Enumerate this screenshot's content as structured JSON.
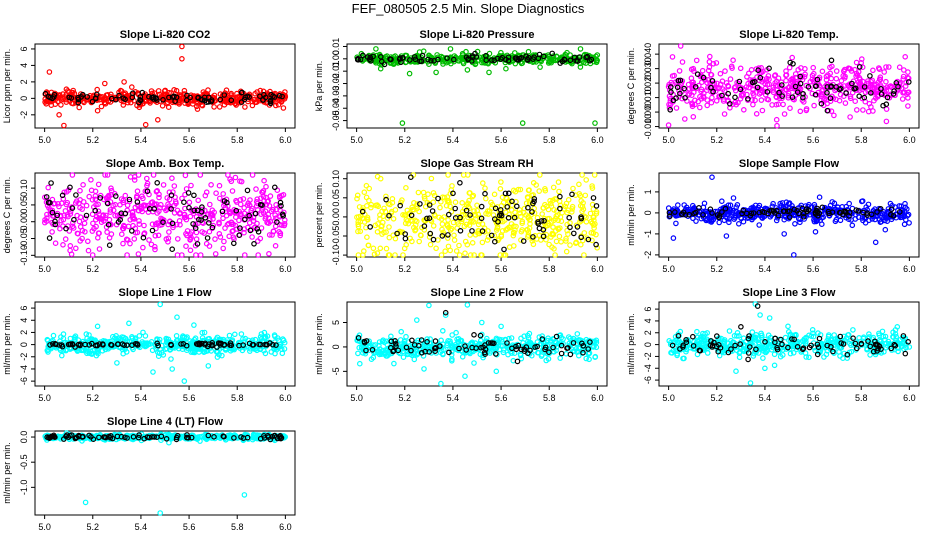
{
  "page": {
    "title": "FEF_080505  2.5 Min. Slope Diagnostics"
  },
  "colors": {
    "point_outline_default": "#000000",
    "axis": "#000000"
  },
  "chart_data": [
    {
      "type": "scatter",
      "title": "Slope Li-820 CO2",
      "ylabel": "Licor ppm per min.",
      "xlim": [
        4.96,
        6.04
      ],
      "ylim": [
        -3.6,
        6.6
      ],
      "xticks": [
        5.0,
        5.2,
        5.4,
        5.6,
        5.8,
        6.0
      ],
      "xtick_labels": [
        "5.0",
        "5.2",
        "5.4",
        "5.6",
        "5.8",
        "6.0"
      ],
      "yticks": [
        -2,
        0,
        2,
        4,
        6
      ],
      "ytick_labels": [
        "-2",
        "0",
        "2",
        "4",
        "6"
      ],
      "series": [
        {
          "name": "all",
          "color": "#ff0000",
          "n": 440,
          "base": 0,
          "spread": 0.45,
          "outliers": [
            [
              5.02,
              3.2
            ],
            [
              5.08,
              -3.3
            ],
            [
              5.25,
              1.8
            ],
            [
              5.33,
              2.0
            ],
            [
              5.42,
              -3.2
            ],
            [
              5.57,
              6.3
            ],
            [
              5.57,
              4.8
            ],
            [
              5.47,
              -2.6
            ],
            [
              5.22,
              -1.5
            ],
            [
              5.06,
              -2.0
            ]
          ]
        },
        {
          "name": "highlight",
          "color": "#000000",
          "n": 80,
          "base": 0,
          "spread": 0.3,
          "outliers": []
        }
      ]
    },
    {
      "type": "scatter",
      "title": "Slope Li-820 Pressure",
      "ylabel": "kPa per min.",
      "xlim": [
        4.96,
        6.04
      ],
      "ylim": [
        -0.056,
        0.012
      ],
      "xticks": [
        5.0,
        5.2,
        5.4,
        5.6,
        5.8,
        6.0
      ],
      "xtick_labels": [
        "5.0",
        "5.2",
        "5.4",
        "5.6",
        "5.8",
        "6.0"
      ],
      "yticks": [
        -0.05,
        -0.04,
        -0.03,
        -0.02,
        -0.01,
        0.0,
        0.01
      ],
      "ytick_labels": [
        "-0.05",
        "-0.04",
        "-0.03",
        "-0.02",
        "-0.01",
        "0.00",
        "0.01"
      ],
      "series": [
        {
          "name": "all",
          "color": "#00bb00",
          "n": 420,
          "base": 0,
          "spread": 0.002,
          "outliers": [
            [
              5.19,
              -0.052
            ],
            [
              5.69,
              -0.052
            ],
            [
              5.99,
              -0.052
            ],
            [
              5.33,
              -0.011
            ],
            [
              5.22,
              -0.012
            ],
            [
              5.55,
              -0.011
            ],
            [
              5.39,
              0.008
            ],
            [
              5.08,
              0.008
            ],
            [
              5.93,
              0.008
            ],
            [
              5.1,
              -0.008
            ],
            [
              5.46,
              -0.009
            ],
            [
              5.62,
              -0.008
            ]
          ]
        },
        {
          "name": "highlight",
          "color": "#000000",
          "n": 80,
          "base": 0,
          "spread": 0.0015,
          "outliers": []
        }
      ]
    },
    {
      "type": "scatter",
      "title": "Slope Li-820 Temp.",
      "ylabel": "degrees C per min.",
      "xlim": [
        4.96,
        6.04
      ],
      "ylim": [
        -0.011,
        0.047
      ],
      "xticks": [
        5.0,
        5.2,
        5.4,
        5.6,
        5.8,
        6.0
      ],
      "xtick_labels": [
        "5.0",
        "5.2",
        "5.4",
        "5.6",
        "5.8",
        "6.0"
      ],
      "yticks": [
        -0.01,
        0.0,
        0.01,
        0.02,
        0.03,
        0.04
      ],
      "ytick_labels": [
        "-0.010",
        "0.000",
        "0.010",
        "0.020",
        "0.030",
        "0.040"
      ],
      "series": [
        {
          "name": "all",
          "color": "#ff00ff",
          "n": 500,
          "base": 0.017,
          "spread": 0.0085,
          "outliers": [
            [
              5.05,
              0.046
            ],
            [
              5.0,
              -0.009
            ],
            [
              5.96,
              0.031
            ]
          ]
        },
        {
          "name": "highlight",
          "color": "#000000",
          "n": 80,
          "base": 0.017,
          "spread": 0.0075,
          "outliers": []
        }
      ]
    },
    {
      "type": "scatter",
      "title": "Slope Amb. Box Temp.",
      "ylabel": "degrees C per min.",
      "xlim": [
        4.96,
        6.04
      ],
      "ylim": [
        -0.105,
        0.145
      ],
      "xticks": [
        5.0,
        5.2,
        5.4,
        5.6,
        5.8,
        6.0
      ],
      "xtick_labels": [
        "5.0",
        "5.2",
        "5.4",
        "5.6",
        "5.8",
        "6.0"
      ],
      "yticks": [
        -0.1,
        -0.05,
        0.0,
        0.05,
        0.1
      ],
      "ytick_labels": [
        "-0.10",
        "-0.05",
        "0.00",
        "0.05",
        "0.10"
      ],
      "series": [
        {
          "name": "all",
          "color": "#ff00ff",
          "n": 520,
          "base": 0.02,
          "spread": 0.05,
          "outliers": []
        },
        {
          "name": "highlight",
          "color": "#000000",
          "n": 80,
          "base": 0.02,
          "spread": 0.045,
          "outliers": []
        }
      ]
    },
    {
      "type": "scatter",
      "title": "Slope Gas Stream RH",
      "ylabel": "percent per min.",
      "xlim": [
        4.96,
        6.04
      ],
      "ylim": [
        -0.105,
        0.115
      ],
      "xticks": [
        5.0,
        5.2,
        5.4,
        5.6,
        5.8,
        6.0
      ],
      "xtick_labels": [
        "5.0",
        "5.2",
        "5.4",
        "5.6",
        "5.8",
        "6.0"
      ],
      "yticks": [
        -0.1,
        -0.05,
        0.0,
        0.05,
        0.1
      ],
      "ytick_labels": [
        "-0.10",
        "-0.05",
        "0.00",
        "0.05",
        "0.10"
      ],
      "series": [
        {
          "name": "all",
          "color": "#ffff00",
          "n": 500,
          "base": 0.0,
          "spread": 0.045,
          "outliers": [
            [
              5.38,
              0.11
            ],
            [
              5.1,
              0.1
            ],
            [
              5.52,
              -0.1
            ],
            [
              5.45,
              -0.095
            ]
          ]
        },
        {
          "name": "highlight",
          "color": "#000000",
          "n": 80,
          "base": 0.0,
          "spread": 0.04,
          "outliers": []
        }
      ]
    },
    {
      "type": "scatter",
      "title": "Slope Sample Flow",
      "ylabel": "ml/min per min.",
      "xlim": [
        4.96,
        6.04
      ],
      "ylim": [
        -2.1,
        1.9
      ],
      "xticks": [
        5.0,
        5.2,
        5.4,
        5.6,
        5.8,
        6.0
      ],
      "xtick_labels": [
        "5.0",
        "5.2",
        "5.4",
        "5.6",
        "5.8",
        "6.0"
      ],
      "yticks": [
        -2,
        -1,
        0,
        1
      ],
      "ytick_labels": [
        "-2",
        "-1",
        "0",
        "1"
      ],
      "series": [
        {
          "name": "all",
          "color": "#0000ff",
          "n": 460,
          "base": 0,
          "spread": 0.22,
          "outliers": [
            [
              5.18,
              1.7
            ],
            [
              5.02,
              -1.2
            ],
            [
              5.24,
              -1.1
            ],
            [
              5.48,
              -1.0
            ],
            [
              5.52,
              -2.0
            ],
            [
              5.61,
              -0.9
            ],
            [
              5.86,
              -1.4
            ],
            [
              5.9,
              -0.8
            ],
            [
              5.03,
              -0.5
            ]
          ]
        },
        {
          "name": "highlight",
          "color": "#000000",
          "n": 80,
          "base": 0,
          "spread": 0.12,
          "outliers": []
        }
      ]
    },
    {
      "type": "scatter",
      "title": "Slope Line 1 Flow",
      "ylabel": "ml/min per min.",
      "xlim": [
        4.96,
        6.04
      ],
      "ylim": [
        -6.8,
        7.0
      ],
      "xticks": [
        5.0,
        5.2,
        5.4,
        5.6,
        5.8,
        6.0
      ],
      "xtick_labels": [
        "5.0",
        "5.2",
        "5.4",
        "5.6",
        "5.8",
        "6.0"
      ],
      "yticks": [
        -6,
        -4,
        -2,
        0,
        2,
        4,
        6
      ],
      "ytick_labels": [
        "-6",
        "-4",
        "-2",
        "0",
        "2",
        "4",
        "6"
      ],
      "series": [
        {
          "name": "all",
          "color": "#00ffff",
          "n": 460,
          "base": 0,
          "spread": 0.8,
          "outliers": [
            [
              5.48,
              6.6
            ],
            [
              5.55,
              4.5
            ],
            [
              5.53,
              -4.0
            ],
            [
              5.58,
              -6.0
            ],
            [
              5.45,
              -4.5
            ],
            [
              5.35,
              3.5
            ],
            [
              5.62,
              3.2
            ],
            [
              5.3,
              -3.0
            ],
            [
              5.68,
              -3.5
            ],
            [
              5.22,
              3.0
            ]
          ]
        },
        {
          "name": "highlight",
          "color": "#000000",
          "n": 80,
          "base": 0,
          "spread": 0.15,
          "outliers": []
        }
      ]
    },
    {
      "type": "scatter",
      "title": "Slope Line 2 Flow",
      "ylabel": "ml/min per min.",
      "xlim": [
        4.96,
        6.04
      ],
      "ylim": [
        -8.0,
        9.2
      ],
      "xticks": [
        5.0,
        5.2,
        5.4,
        5.6,
        5.8,
        6.0
      ],
      "xtick_labels": [
        "5.0",
        "5.2",
        "5.4",
        "5.6",
        "5.8",
        "6.0"
      ],
      "yticks": [
        -5,
        0,
        5
      ],
      "ytick_labels": [
        "-5",
        "0",
        "5"
      ],
      "series": [
        {
          "name": "all",
          "color": "#00ffff",
          "n": 460,
          "base": 0,
          "spread": 1.1,
          "outliers": [
            [
              5.3,
              8.5
            ],
            [
              5.46,
              8.6
            ],
            [
              5.37,
              6.5
            ],
            [
              5.52,
              5.0
            ],
            [
              5.28,
              -4.5
            ],
            [
              5.35,
              -7.5
            ],
            [
              5.45,
              -6.0
            ],
            [
              5.58,
              -5.0
            ],
            [
              5.25,
              5.5
            ],
            [
              5.6,
              4.2
            ]
          ]
        },
        {
          "name": "highlight",
          "color": "#000000",
          "n": 80,
          "base": 0,
          "spread": 0.9,
          "outliers": [
            [
              5.37,
              7.0
            ]
          ]
        }
      ]
    },
    {
      "type": "scatter",
      "title": "Slope Line 3 Flow",
      "ylabel": "ml/min per min.",
      "xlim": [
        4.96,
        6.04
      ],
      "ylim": [
        -7.0,
        7.2
      ],
      "xticks": [
        5.0,
        5.2,
        5.4,
        5.6,
        5.8,
        6.0
      ],
      "xtick_labels": [
        "5.0",
        "5.2",
        "5.4",
        "5.6",
        "5.8",
        "6.0"
      ],
      "yticks": [
        -6,
        -4,
        -2,
        0,
        2,
        4,
        6
      ],
      "ytick_labels": [
        "-6",
        "-4",
        "-2",
        "0",
        "2",
        "4",
        "6"
      ],
      "series": [
        {
          "name": "all",
          "color": "#00ffff",
          "n": 460,
          "base": 0,
          "spread": 1.0,
          "outliers": [
            [
              5.36,
              6.9
            ],
            [
              5.38,
              5.0
            ],
            [
              5.42,
              4.5
            ],
            [
              5.34,
              -6.5
            ],
            [
              5.28,
              -4.5
            ],
            [
              5.4,
              -4.0
            ],
            [
              5.44,
              -3.5
            ],
            [
              5.95,
              3.0
            ]
          ]
        },
        {
          "name": "highlight",
          "color": "#000000",
          "n": 80,
          "base": 0,
          "spread": 0.9,
          "outliers": [
            [
              5.3,
              3.0
            ],
            [
              5.33,
              -2.5
            ],
            [
              5.37,
              6.5
            ]
          ]
        }
      ]
    },
    {
      "type": "scatter",
      "title": "Slope Line 4 (LT) Flow",
      "ylabel": "ml/min per min.",
      "xlim": [
        4.96,
        6.04
      ],
      "ylim": [
        -1.55,
        0.12
      ],
      "xticks": [
        5.0,
        5.2,
        5.4,
        5.6,
        5.8,
        6.0
      ],
      "xtick_labels": [
        "5.0",
        "5.2",
        "5.4",
        "5.6",
        "5.8",
        "6.0"
      ],
      "yticks": [
        -1.0,
        -0.5,
        0.0
      ],
      "ytick_labels": [
        "-1.0",
        "-0.5",
        "0.0"
      ],
      "series": [
        {
          "name": "all",
          "color": "#00ffff",
          "n": 440,
          "base": 0.0,
          "spread": 0.025,
          "outliers": [
            [
              5.17,
              -1.3
            ],
            [
              5.48,
              -1.52
            ],
            [
              5.83,
              -1.15
            ]
          ]
        },
        {
          "name": "highlight",
          "color": "#000000",
          "n": 80,
          "base": 0.0,
          "spread": 0.02,
          "outliers": []
        }
      ]
    }
  ]
}
